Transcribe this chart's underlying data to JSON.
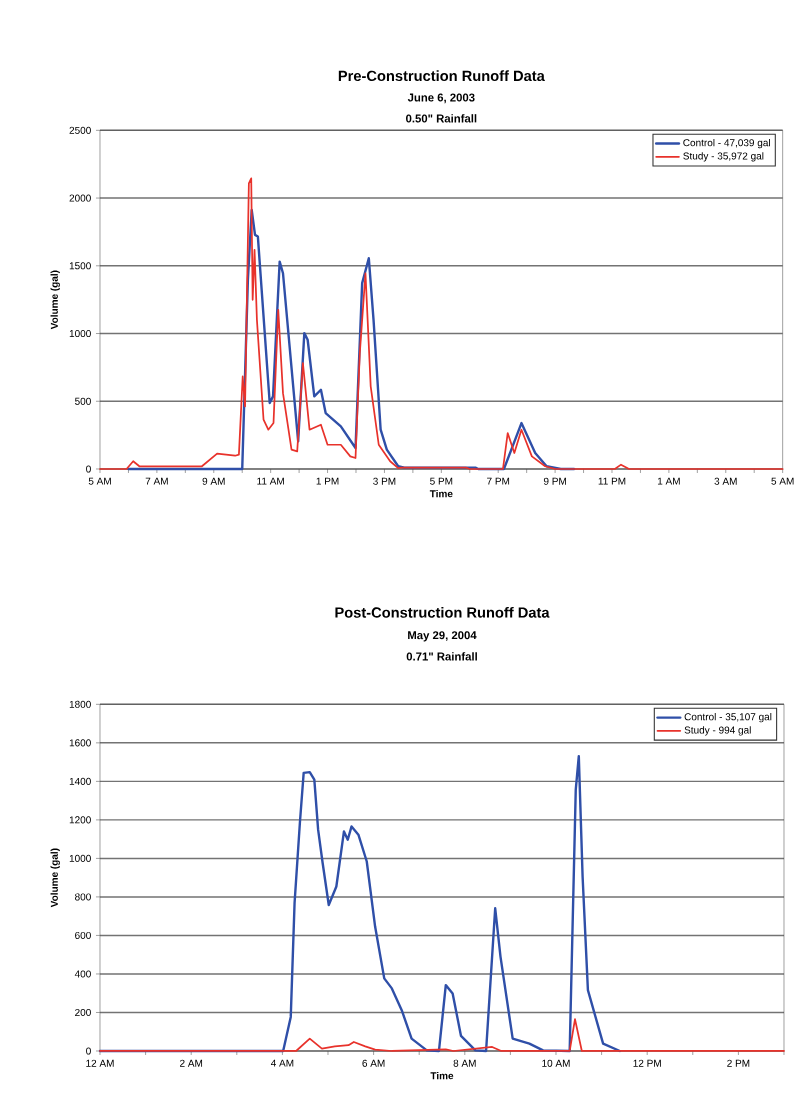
{
  "chart_data": [
    {
      "type": "line",
      "title": "Pre-Construction Runoff Data",
      "subtitle": "June 6, 2003",
      "annotations": [
        "0.50\" Rainfall"
      ],
      "xlabel": "Time",
      "ylabel": "Volume (gal)",
      "xlim": [
        "2003-06-06T05:00",
        "2003-06-07T05:00"
      ],
      "ylim": [
        0,
        2500
      ],
      "xticks": [
        {
          "value": "2003-06-06T05:00",
          "label": "5 AM"
        },
        {
          "value": "2003-06-06T06:00",
          "label": null
        },
        {
          "value": "2003-06-06T07:00",
          "label": "7 AM"
        },
        {
          "value": "2003-06-06T08:00",
          "label": null
        },
        {
          "value": "2003-06-06T09:00",
          "label": "9 AM"
        },
        {
          "value": "2003-06-06T10:00",
          "label": null
        },
        {
          "value": "2003-06-06T11:00",
          "label": "11 AM"
        },
        {
          "value": "2003-06-06T12:00",
          "label": null
        },
        {
          "value": "2003-06-06T13:00",
          "label": "1 PM"
        },
        {
          "value": "2003-06-06T14:00",
          "label": null
        },
        {
          "value": "2003-06-06T15:00",
          "label": "3 PM"
        },
        {
          "value": "2003-06-06T16:00",
          "label": null
        },
        {
          "value": "2003-06-06T17:00",
          "label": "5 PM"
        },
        {
          "value": "2003-06-06T18:00",
          "label": null
        },
        {
          "value": "2003-06-06T19:00",
          "label": "7 PM"
        },
        {
          "value": "2003-06-06T20:00",
          "label": null
        },
        {
          "value": "2003-06-06T21:00",
          "label": "9 PM"
        },
        {
          "value": "2003-06-06T22:00",
          "label": null
        },
        {
          "value": "2003-06-06T23:00",
          "label": "11 PM"
        },
        {
          "value": "2003-06-07T00:00",
          "label": null
        },
        {
          "value": "2003-06-07T01:00",
          "label": "1 AM"
        },
        {
          "value": "2003-06-07T02:00",
          "label": null
        },
        {
          "value": "2003-06-07T03:00",
          "label": "3 AM"
        },
        {
          "value": "2003-06-07T04:00",
          "label": null
        },
        {
          "value": "2003-06-07T05:00",
          "label": "5 AM"
        }
      ],
      "yticks": [
        0,
        500,
        1000,
        1500,
        2000,
        2500
      ],
      "grid": "y",
      "legend": "top right",
      "series": [
        {
          "name": "Control - 47,039 gal",
          "color": "#2f4fa8",
          "x": [
            "2003-06-06T06:00",
            "2003-06-06T10:00",
            "2003-06-06T10:12",
            "2003-06-06T10:20",
            "2003-06-06T10:27",
            "2003-06-06T10:33",
            "2003-06-06T10:58",
            "2003-06-06T11:05",
            "2003-06-06T11:19",
            "2003-06-06T11:26",
            "2003-06-06T11:58",
            "2003-06-06T12:11",
            "2003-06-06T12:18",
            "2003-06-06T12:32",
            "2003-06-06T12:46",
            "2003-06-06T12:56",
            "2003-06-06T13:28",
            "2003-06-06T13:59",
            "2003-06-06T14:13",
            "2003-06-06T14:27",
            "2003-06-06T14:37",
            "2003-06-06T14:52",
            "2003-06-06T15:05",
            "2003-06-06T15:29",
            "2003-06-06T15:42",
            "2003-06-06T18:12",
            "2003-06-06T18:18",
            "2003-06-06T19:12",
            "2003-06-06T19:49",
            "2003-06-06T20:18",
            "2003-06-06T20:42",
            "2003-06-06T21:12",
            "2003-06-06T21:40"
          ],
          "values": [
            0,
            0,
            1400,
            1912,
            1728,
            1716,
            487,
            536,
            1531,
            1445,
            204,
            1003,
            954,
            536,
            585,
            413,
            315,
            155,
            1372,
            1556,
            1101,
            290,
            143,
            20,
            10,
            10,
            0,
            0,
            339,
            118,
            20,
            0,
            0
          ]
        },
        {
          "name": "Study - 35,972 gal",
          "color": "#e8322b",
          "x": [
            "2003-06-06T05:00",
            "2003-06-06T05:56",
            "2003-06-06T06:10",
            "2003-06-06T06:23",
            "2003-06-06T08:35",
            "2003-06-06T09:07",
            "2003-06-06T09:45",
            "2003-06-06T09:53",
            "2003-06-06T10:01",
            "2003-06-06T10:06",
            "2003-06-06T10:14",
            "2003-06-06T10:19",
            "2003-06-06T10:22",
            "2003-06-06T10:26",
            "2003-06-06T10:31",
            "2003-06-06T10:45",
            "2003-06-06T10:55",
            "2003-06-06T11:06",
            "2003-06-06T11:16",
            "2003-06-06T11:26",
            "2003-06-06T11:44",
            "2003-06-06T11:56",
            "2003-06-06T12:08",
            "2003-06-06T12:22",
            "2003-06-06T12:46",
            "2003-06-06T13:00",
            "2003-06-06T13:28",
            "2003-06-06T13:48",
            "2003-06-06T13:59",
            "2003-06-06T14:08",
            "2003-06-06T14:20",
            "2003-06-06T14:31",
            "2003-06-06T14:48",
            "2003-06-06T15:12",
            "2003-06-06T15:29",
            "2003-06-06T15:36",
            "2003-06-06T17:52",
            "2003-06-06T18:00",
            "2003-06-06T19:10",
            "2003-06-06T19:20",
            "2003-06-06T19:34",
            "2003-06-06T19:49",
            "2003-06-06T20:11",
            "2003-06-06T20:39",
            "2003-06-06T21:00",
            "2003-06-06T23:06",
            "2003-06-06T23:19",
            "2003-06-06T23:36",
            "2003-06-07T05:00"
          ],
          "values": [
            0,
            0,
            57,
            20,
            20,
            113,
            98,
            106,
            683,
            462,
            2109,
            2146,
            1249,
            1618,
            1101,
            364,
            290,
            339,
            1175,
            560,
            143,
            130,
            782,
            290,
            327,
            179,
            179,
            93,
            81,
            855,
            1445,
            610,
            179,
            57,
            7,
            10,
            10,
            0,
            0,
            265,
            118,
            290,
            93,
            20,
            0,
            0,
            32,
            0,
            0
          ]
        }
      ]
    },
    {
      "type": "line",
      "title": "Post-Construction Runoff Data",
      "subtitle": "May 29, 2004",
      "annotations": [
        "0.71\" Rainfall"
      ],
      "xlabel": "Time",
      "ylabel": "Volume (gal)",
      "xlim": [
        "2004-05-29T00:00",
        "2004-05-29T15:00"
      ],
      "ylim": [
        0,
        1800
      ],
      "xticks": [
        {
          "value": "2004-05-29T00:00",
          "label": "12 AM"
        },
        {
          "value": "2004-05-29T01:00",
          "label": null
        },
        {
          "value": "2004-05-29T02:00",
          "label": "2 AM"
        },
        {
          "value": "2004-05-29T03:00",
          "label": null
        },
        {
          "value": "2004-05-29T04:00",
          "label": "4 AM"
        },
        {
          "value": "2004-05-29T05:00",
          "label": null
        },
        {
          "value": "2004-05-29T06:00",
          "label": "6 AM"
        },
        {
          "value": "2004-05-29T07:00",
          "label": null
        },
        {
          "value": "2004-05-29T08:00",
          "label": "8 AM"
        },
        {
          "value": "2004-05-29T09:00",
          "label": null
        },
        {
          "value": "2004-05-29T10:00",
          "label": "10 AM"
        },
        {
          "value": "2004-05-29T11:00",
          "label": null
        },
        {
          "value": "2004-05-29T12:00",
          "label": "12 PM"
        },
        {
          "value": "2004-05-29T13:00",
          "label": null
        },
        {
          "value": "2004-05-29T14:00",
          "label": "2 PM"
        },
        {
          "value": "2004-05-29T15:00",
          "label": null
        }
      ],
      "yticks": [
        0,
        200,
        400,
        600,
        800,
        1000,
        1200,
        1400,
        1600,
        1800
      ],
      "grid": "y",
      "legend": "top right",
      "series": [
        {
          "name": "Control - 35,107 gal",
          "color": "#2f4fa8",
          "x": [
            "2004-05-29T00:00",
            "2004-05-29T04:01",
            "2004-05-29T04:11",
            "2004-05-29T04:16",
            "2004-05-29T04:23",
            "2004-05-29T04:28",
            "2004-05-29T04:36",
            "2004-05-29T04:42",
            "2004-05-29T04:47",
            "2004-05-29T04:53",
            "2004-05-29T05:01",
            "2004-05-29T05:11",
            "2004-05-29T05:21",
            "2004-05-29T05:26",
            "2004-05-29T05:31",
            "2004-05-29T05:40",
            "2004-05-29T05:51",
            "2004-05-29T06:02",
            "2004-05-29T06:14",
            "2004-05-29T06:24",
            "2004-05-29T06:37",
            "2004-05-29T06:50",
            "2004-05-29T07:10",
            "2004-05-29T07:26",
            "2004-05-29T07:35",
            "2004-05-29T07:44",
            "2004-05-29T07:55",
            "2004-05-29T08:14",
            "2004-05-29T08:28",
            "2004-05-29T08:40",
            "2004-05-29T08:47",
            "2004-05-29T09:03",
            "2004-05-29T09:25",
            "2004-05-29T09:43",
            "2004-05-29T10:18",
            "2004-05-29T10:26",
            "2004-05-29T10:30",
            "2004-05-29T10:35",
            "2004-05-29T10:42",
            "2004-05-29T11:02",
            "2004-05-29T11:24"
          ],
          "values": [
            0,
            0,
            177,
            767,
            1184,
            1444,
            1448,
            1409,
            1149,
            975,
            758,
            854,
            1140,
            1097,
            1166,
            1123,
            984,
            646,
            377,
            325,
            212,
            64,
            3,
            0,
            342,
            299,
            78,
            3,
            0,
            741,
            489,
            64,
            38,
            3,
            0,
            1357,
            1531,
            906,
            316,
            38,
            0
          ]
        },
        {
          "name": "Study - 994 gal",
          "color": "#e8322b",
          "x": [
            "2004-05-29T00:00",
            "2004-05-29T04:18",
            "2004-05-29T04:36",
            "2004-05-29T04:52",
            "2004-05-29T05:09",
            "2004-05-29T05:27",
            "2004-05-29T05:34",
            "2004-05-29T05:49",
            "2004-05-29T06:02",
            "2004-05-29T06:24",
            "2004-05-29T07:35",
            "2004-05-29T07:45",
            "2004-05-29T08:36",
            "2004-05-29T08:48",
            "2004-05-29T10:18",
            "2004-05-29T10:25",
            "2004-05-29T10:34",
            "2004-05-29T15:00"
          ],
          "values": [
            0,
            0,
            64,
            12,
            24,
            30,
            47,
            24,
            7,
            0,
            8,
            0,
            21,
            0,
            0,
            165,
            0,
            0
          ]
        }
      ]
    }
  ]
}
